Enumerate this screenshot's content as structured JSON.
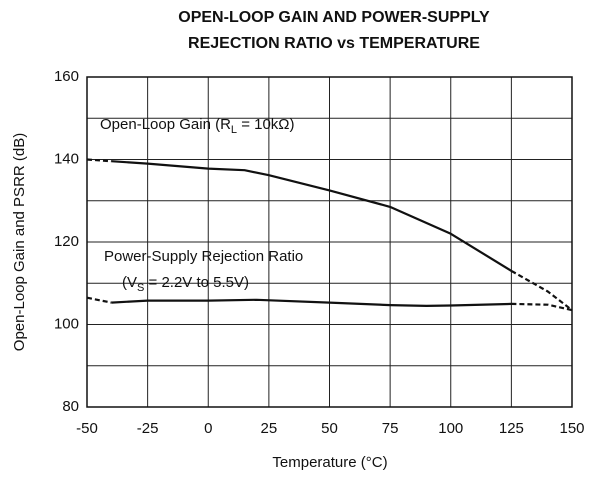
{
  "chart_data": {
    "type": "line",
    "title": [
      "OPEN-LOOP GAIN AND POWER-SUPPLY",
      "REJECTION RATIO vs TEMPERATURE"
    ],
    "x_label": "Temperature (°C)",
    "y_label": "Open-Loop Gain and PSRR (dB)",
    "xlim": [
      -50,
      150
    ],
    "xticks": [
      -50,
      -25,
      0,
      25,
      50,
      75,
      100,
      125,
      150
    ],
    "ylim": [
      80,
      160
    ],
    "yticks": [
      80,
      100,
      120,
      140,
      160
    ],
    "ygrid": [
      80,
      90,
      100,
      110,
      120,
      130,
      140,
      150,
      160
    ],
    "grid": true,
    "color": "#111111",
    "annotations": [
      [
        {
          "text": "Open-Loop Gain (R"
        },
        {
          "text": "L",
          "sub": true
        },
        {
          "text": " = 10kΩ)"
        }
      ],
      [
        {
          "text": "Power-Supply Rejection Ratio"
        }
      ],
      [
        {
          "text": "(V"
        },
        {
          "text": "S",
          "sub": true
        },
        {
          "text": " = 2.2V to 5.5V)"
        }
      ]
    ],
    "series": [
      {
        "dashed": true,
        "x": [
          -50,
          -40
        ],
        "values": [
          140,
          139.6
        ]
      },
      {
        "dashed": false,
        "x": [
          -40,
          -25,
          0,
          15,
          25,
          50,
          75,
          100,
          125
        ],
        "values": [
          139.6,
          139,
          137.8,
          137.4,
          136.2,
          132.5,
          128.5,
          122,
          113
        ]
      },
      {
        "dashed": true,
        "x": [
          125,
          140,
          150
        ],
        "values": [
          113,
          108,
          103.5
        ]
      },
      {
        "dashed": true,
        "x": [
          -50,
          -40
        ],
        "values": [
          106.5,
          105.3
        ]
      },
      {
        "dashed": false,
        "x": [
          -40,
          -25,
          0,
          20,
          50,
          75,
          90,
          100,
          125
        ],
        "values": [
          105.3,
          105.8,
          105.8,
          106,
          105.3,
          104.7,
          104.5,
          104.6,
          105
        ]
      },
      {
        "dashed": true,
        "x": [
          125,
          140,
          150
        ],
        "values": [
          105,
          104.8,
          103.5
        ]
      }
    ]
  }
}
